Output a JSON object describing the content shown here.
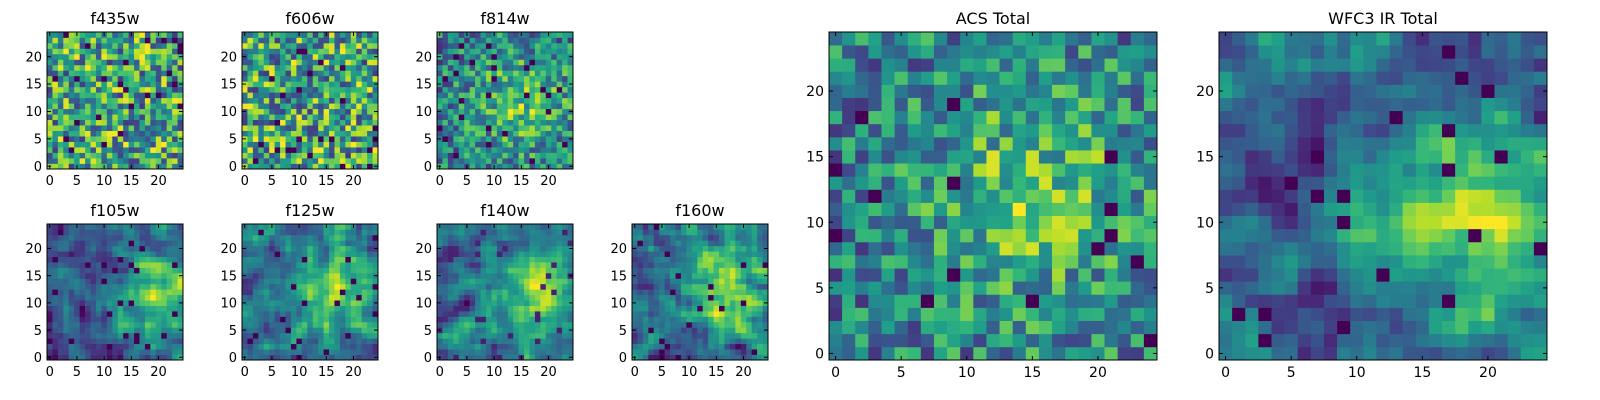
{
  "chart_data": [
    {
      "type": "heatmap",
      "title": "f435w",
      "colormap": "viridis",
      "grid": false,
      "rows": 25,
      "cols": 25,
      "xlim": [
        0,
        24
      ],
      "ylim": [
        0,
        24
      ],
      "xticks": [
        0,
        5,
        10,
        15,
        20
      ],
      "yticks": [
        0,
        5,
        10,
        15,
        20
      ],
      "pattern": "noise"
    },
    {
      "type": "heatmap",
      "title": "f606w",
      "colormap": "viridis",
      "grid": false,
      "rows": 25,
      "cols": 25,
      "xlim": [
        0,
        24
      ],
      "ylim": [
        0,
        24
      ],
      "xticks": [
        0,
        5,
        10,
        15,
        20
      ],
      "yticks": [
        0,
        5,
        10,
        15,
        20
      ],
      "pattern": "noise"
    },
    {
      "type": "heatmap",
      "title": "f814w",
      "colormap": "viridis",
      "grid": false,
      "rows": 25,
      "cols": 25,
      "xlim": [
        0,
        24
      ],
      "ylim": [
        0,
        24
      ],
      "xticks": [
        0,
        5,
        10,
        15,
        20
      ],
      "yticks": [
        0,
        5,
        10,
        15,
        20
      ],
      "pattern": "noise-with-central-source"
    },
    {
      "type": "heatmap",
      "title": "f105w",
      "colormap": "viridis",
      "grid": false,
      "rows": 25,
      "cols": 25,
      "xlim": [
        0,
        24
      ],
      "ylim": [
        0,
        24
      ],
      "xticks": [
        0,
        5,
        10,
        15,
        20
      ],
      "yticks": [
        0,
        5,
        10,
        15,
        20
      ],
      "pattern": "central-source",
      "peak_at": [
        19,
        11
      ]
    },
    {
      "type": "heatmap",
      "title": "f125w",
      "colormap": "viridis",
      "grid": false,
      "rows": 25,
      "cols": 25,
      "xlim": [
        0,
        24
      ],
      "ylim": [
        0,
        24
      ],
      "xticks": [
        0,
        5,
        10,
        15,
        20
      ],
      "yticks": [
        0,
        5,
        10,
        15,
        20
      ],
      "pattern": "central-source",
      "peak_at": [
        17,
        12
      ]
    },
    {
      "type": "heatmap",
      "title": "f140w",
      "colormap": "viridis",
      "grid": false,
      "rows": 25,
      "cols": 25,
      "xlim": [
        0,
        24
      ],
      "ylim": [
        0,
        24
      ],
      "xticks": [
        0,
        5,
        10,
        15,
        20
      ],
      "yticks": [
        0,
        5,
        10,
        15,
        20
      ],
      "pattern": "central-source",
      "peak_at": [
        18,
        12
      ]
    },
    {
      "type": "heatmap",
      "title": "f160w",
      "colormap": "viridis",
      "grid": false,
      "rows": 25,
      "cols": 25,
      "xlim": [
        0,
        24
      ],
      "ylim": [
        0,
        24
      ],
      "xticks": [
        0,
        5,
        10,
        15,
        20
      ],
      "yticks": [
        0,
        5,
        10,
        15,
        20
      ],
      "pattern": "central-source",
      "peak_at": [
        18,
        13
      ]
    },
    {
      "type": "heatmap",
      "title": "ACS Total",
      "colormap": "viridis",
      "grid": false,
      "rows": 25,
      "cols": 25,
      "xlim": [
        0,
        24
      ],
      "ylim": [
        0,
        24
      ],
      "xticks": [
        0,
        5,
        10,
        15,
        20
      ],
      "yticks": [
        0,
        5,
        10,
        15,
        20
      ],
      "pattern": "noise-with-central-source"
    },
    {
      "type": "heatmap",
      "title": "WFC3 IR Total",
      "colormap": "viridis",
      "grid": false,
      "rows": 25,
      "cols": 25,
      "xlim": [
        0,
        24
      ],
      "ylim": [
        0,
        24
      ],
      "xticks": [
        0,
        5,
        10,
        15,
        20
      ],
      "yticks": [
        0,
        5,
        10,
        15,
        20
      ],
      "pattern": "central-source",
      "peak_at": [
        19,
        11
      ]
    }
  ]
}
